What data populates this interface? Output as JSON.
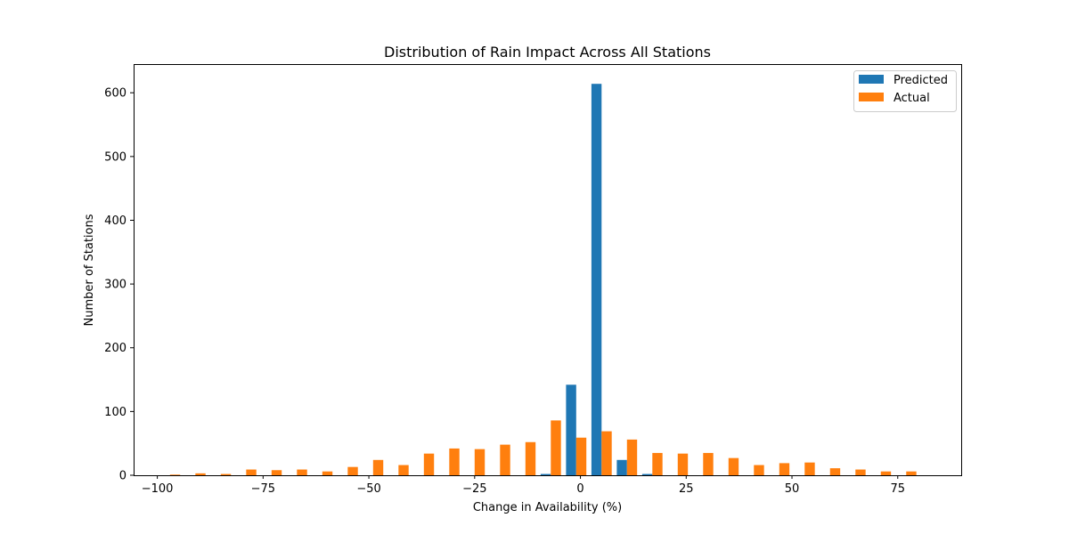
{
  "chart_data": {
    "type": "bar",
    "title": "Distribution of Rain Impact Across All Stations",
    "xlabel": "Change in Availability (%)",
    "ylabel": "Number of Stations",
    "xlim": [
      -105.6,
      90.0
    ],
    "ylim": [
      0,
      645
    ],
    "xticks": [
      -100,
      -75,
      -50,
      -25,
      0,
      25,
      50,
      75
    ],
    "xtick_labels": [
      "−100",
      "−75",
      "−50",
      "−25",
      "0",
      "25",
      "50",
      "75"
    ],
    "yticks": [
      0,
      100,
      200,
      300,
      400,
      500,
      600
    ],
    "ytick_labels": [
      "0",
      "100",
      "200",
      "300",
      "400",
      "500",
      "600"
    ],
    "grid": false,
    "legend_position": "top-right",
    "bin_edges": [
      -100,
      -94,
      -88,
      -82,
      -76,
      -70,
      -64,
      -58,
      -52,
      -46,
      -40,
      -34,
      -28,
      -22,
      -16,
      -10,
      -4,
      2,
      8,
      14,
      20,
      26,
      32,
      38,
      44,
      50,
      56,
      62,
      68,
      74,
      80,
      86
    ],
    "series": [
      {
        "name": "Predicted",
        "color": "#1f77b4",
        "values": [
          0,
          0,
          0,
          0,
          0,
          0,
          0,
          0,
          0,
          0,
          0,
          0,
          0,
          0,
          0,
          2,
          142,
          614,
          24,
          2,
          0,
          0,
          0,
          0,
          0,
          0,
          0,
          0,
          0,
          0,
          0
        ]
      },
      {
        "name": "Actual",
        "color": "#ff7f0e",
        "values": [
          1,
          3,
          2,
          9,
          8,
          9,
          6,
          13,
          24,
          16,
          34,
          42,
          41,
          48,
          52,
          86,
          59,
          69,
          56,
          35,
          34,
          35,
          27,
          16,
          19,
          20,
          11,
          9,
          6,
          6,
          0
        ]
      }
    ]
  }
}
